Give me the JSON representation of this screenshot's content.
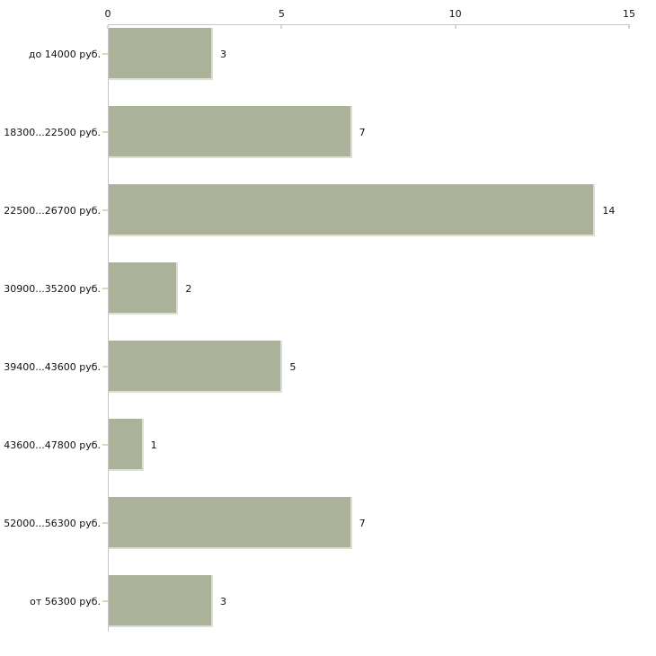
{
  "chart_data": {
    "type": "bar",
    "orientation": "horizontal",
    "title": "",
    "xlabel": "",
    "ylabel": "",
    "categories": [
      "до 14000 руб.",
      "18300...22500 руб.",
      "22500...26700 руб.",
      "30900...35200 руб.",
      "39400...43600 руб.",
      "43600...47800 руб.",
      "52000...56300 руб.",
      "от 56300 руб."
    ],
    "values": [
      3,
      7,
      14,
      2,
      5,
      1,
      7,
      3
    ],
    "xlim": [
      0,
      15
    ],
    "xticks": [
      0,
      5,
      10,
      15
    ],
    "value_labels_shown": true,
    "grid": "off",
    "legend": "none",
    "axis_position": "top",
    "colors": {
      "bar_fill": "#abb29a",
      "bar_edge": "#dddfd3",
      "axis_line": "#c6c6c6",
      "tick_mark": "#d9dbb1",
      "text": "#111111",
      "background": "#ffffff"
    }
  }
}
